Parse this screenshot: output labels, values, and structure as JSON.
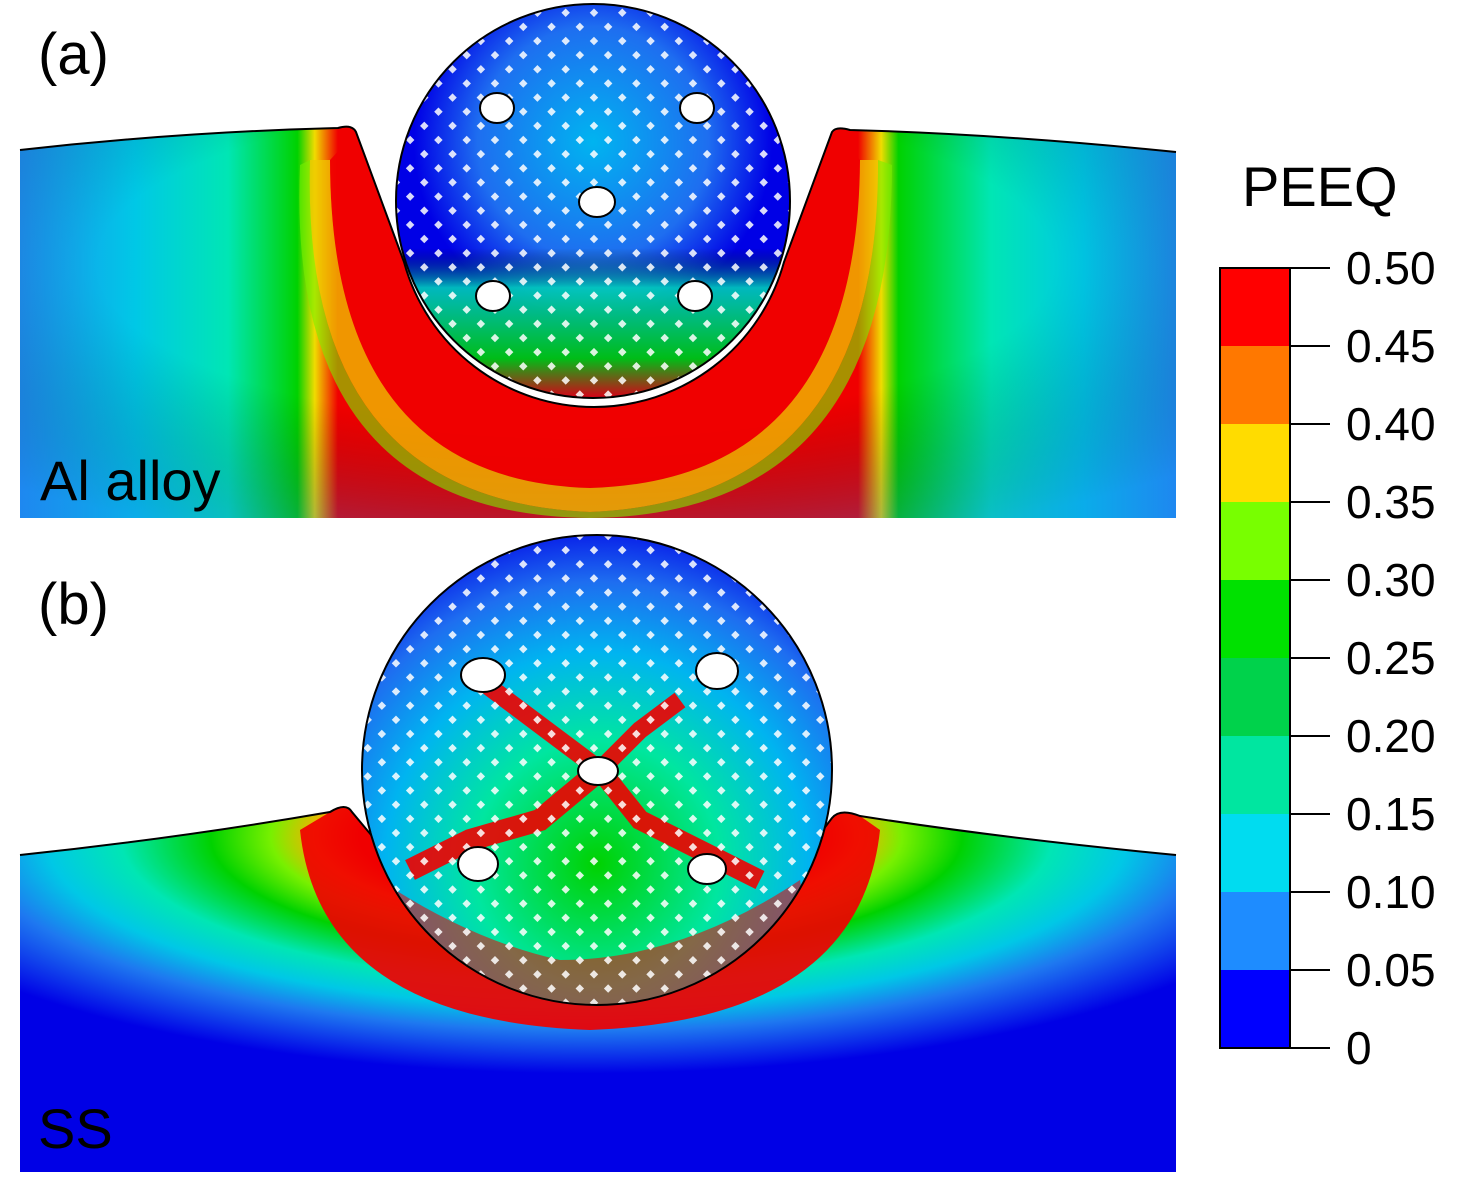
{
  "panels": [
    {
      "label": "(a)",
      "material": "Al alloy"
    },
    {
      "label": "(b)",
      "material": "SS"
    }
  ],
  "legend": {
    "title": "PEEQ",
    "ticks": [
      "0.50",
      "0.45",
      "0.40",
      "0.35",
      "0.30",
      "0.25",
      "0.20",
      "0.15",
      "0.10",
      "0.05",
      "0"
    ],
    "colors": [
      "#ff0000",
      "#ff7800",
      "#ffdc00",
      "#78ff00",
      "#00e100",
      "#00d24b",
      "#00e6a0",
      "#00dcf0",
      "#1e8cff",
      "#0000ff"
    ]
  },
  "colormap": {
    "blue": "#0000f0",
    "mid_blue": "#1e78f0",
    "cyan": "#00d2e6",
    "teal": "#00e6b4",
    "green": "#00d200",
    "yellow_green": "#78f000",
    "yellow": "#f0dc00",
    "orange": "#ff7800",
    "red": "#f00000"
  }
}
